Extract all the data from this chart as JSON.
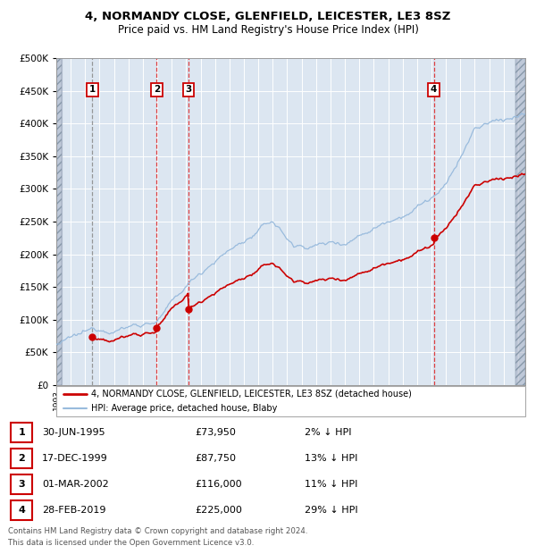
{
  "title_line1": "4, NORMANDY CLOSE, GLENFIELD, LEICESTER, LE3 8SZ",
  "title_line2": "Price paid vs. HM Land Registry's House Price Index (HPI)",
  "background_color": "#ffffff",
  "plot_bg_color": "#dce6f1",
  "grid_color": "#ffffff",
  "sale_line_color": "#cc0000",
  "hpi_line_color": "#99bbdd",
  "vline_color_1": "#888888",
  "vline_color_rest": "#dd2222",
  "marker_color": "#cc0000",
  "sales": [
    {
      "date_num": 1995.497,
      "price": 73950,
      "label": "1"
    },
    {
      "date_num": 1999.958,
      "price": 87750,
      "label": "2"
    },
    {
      "date_num": 2002.163,
      "price": 116000,
      "label": "3"
    },
    {
      "date_num": 2019.163,
      "price": 225000,
      "label": "4"
    }
  ],
  "table_rows": [
    {
      "num": "1",
      "date": "30-JUN-1995",
      "price": "£73,950",
      "note": "2% ↓ HPI"
    },
    {
      "num": "2",
      "date": "17-DEC-1999",
      "price": "£87,750",
      "note": "13% ↓ HPI"
    },
    {
      "num": "3",
      "date": "01-MAR-2002",
      "price": "£116,000",
      "note": "11% ↓ HPI"
    },
    {
      "num": "4",
      "date": "28-FEB-2019",
      "price": "£225,000",
      "note": "29% ↓ HPI"
    }
  ],
  "legend_line1": "4, NORMANDY CLOSE, GLENFIELD, LEICESTER, LE3 8SZ (detached house)",
  "legend_line2": "HPI: Average price, detached house, Blaby",
  "footnote": "Contains HM Land Registry data © Crown copyright and database right 2024.\nThis data is licensed under the Open Government Licence v3.0.",
  "ylim": [
    0,
    500000
  ],
  "yticks": [
    0,
    50000,
    100000,
    150000,
    200000,
    250000,
    300000,
    350000,
    400000,
    450000,
    500000
  ],
  "xlim_start": 1993.0,
  "xlim_end": 2025.5
}
